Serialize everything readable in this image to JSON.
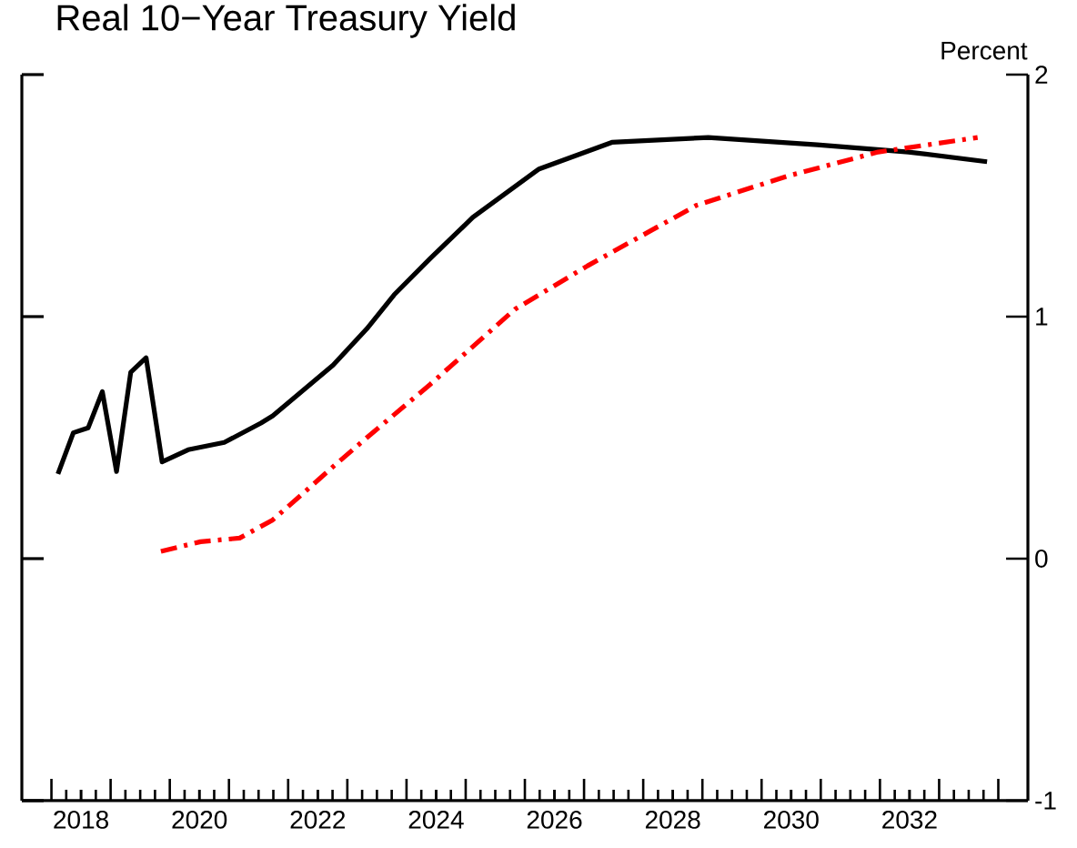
{
  "chart_data": {
    "type": "line",
    "title": "Real 10−Year Treasury Yield",
    "ylabel": "Percent",
    "xlim": [
      2017.5,
      2034.5
    ],
    "ylim": [
      -1,
      2
    ],
    "yticks": [
      -1,
      0,
      1,
      2
    ],
    "xticks": [
      {
        "value": 2018,
        "label": null
      },
      {
        "value": 2019,
        "label": null
      },
      {
        "value": 2020,
        "label": null
      },
      {
        "value": 2021,
        "label": null
      },
      {
        "value": 2022,
        "label": null
      },
      {
        "value": 2023,
        "label": null
      },
      {
        "value": 2024,
        "label": null
      },
      {
        "value": 2025,
        "label": null
      },
      {
        "value": 2026,
        "label": null
      },
      {
        "value": 2027,
        "label": null
      },
      {
        "value": 2028,
        "label": null
      },
      {
        "value": 2029,
        "label": null
      },
      {
        "value": 2030,
        "label": null
      },
      {
        "value": 2031,
        "label": null
      },
      {
        "value": 2032,
        "label": null
      },
      {
        "value": 2033,
        "label": null
      },
      {
        "value": 2034,
        "label": null
      },
      {
        "value": 2018.5,
        "label": "2018"
      },
      {
        "value": 2020.5,
        "label": "2020"
      },
      {
        "value": 2022.5,
        "label": "2022"
      },
      {
        "value": 2024.5,
        "label": "2024"
      },
      {
        "value": 2026.5,
        "label": "2026"
      },
      {
        "value": 2028.5,
        "label": "2028"
      },
      {
        "value": 2030.5,
        "label": "2030"
      },
      {
        "value": 2032.5,
        "label": "2032"
      }
    ],
    "series": [
      {
        "color": "#000000",
        "line_style": "solid",
        "x": [
          2018.11,
          2018.37,
          2018.62,
          2018.86,
          2019.1,
          2019.34,
          2019.6,
          2019.87,
          2020.31,
          2020.92,
          2021.54,
          2021.74,
          2022.76,
          2023.33,
          2023.79,
          2024.4,
          2025.12,
          2026.24,
          2027.47,
          2029.1,
          2030.94,
          2032.48,
          2033.81
        ],
        "values": [
          0.35,
          0.52,
          0.54,
          0.69,
          0.36,
          0.77,
          0.83,
          0.4,
          0.45,
          0.48,
          0.56,
          0.59,
          0.8,
          0.95,
          1.09,
          1.24,
          1.41,
          1.61,
          1.72,
          1.74,
          1.71,
          1.68,
          1.64
        ]
      },
      {
        "color": "#ff0000",
        "line_style": "dashed",
        "x": [
          2019.85,
          2020.52,
          2021.18,
          2021.74,
          2022.3,
          2022.76,
          2023.33,
          2024.4,
          2025.83,
          2027.06,
          2028.9,
          2030.43,
          2031.97,
          2033.65
        ],
        "values": [
          0.03,
          0.07,
          0.085,
          0.16,
          0.28,
          0.38,
          0.5,
          0.72,
          1.03,
          1.21,
          1.46,
          1.58,
          1.68,
          1.74
        ]
      }
    ]
  }
}
